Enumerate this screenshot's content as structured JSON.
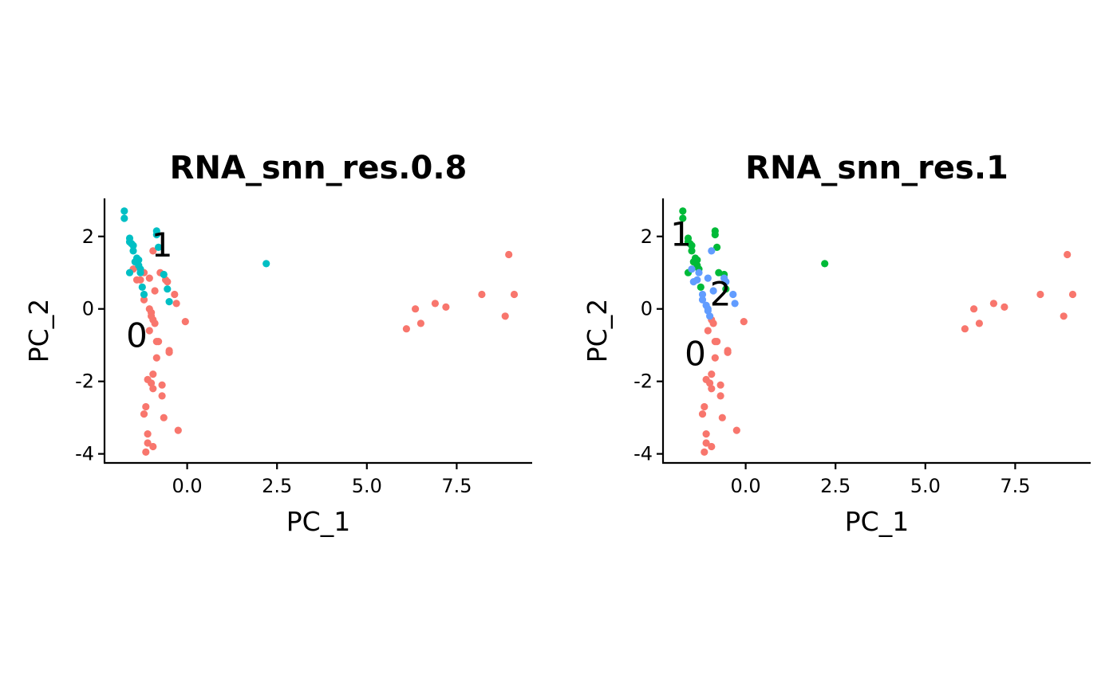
{
  "colors": {
    "cluster_0": "#F8766D",
    "cluster_1_res08": "#00BFC4",
    "cluster_1_res1": "#00BA38",
    "cluster_2_res1": "#619CFF"
  },
  "chart_data": [
    {
      "type": "scatter",
      "title": "RNA_snn_res.0.8",
      "xlabel": "PC_1",
      "ylabel": "PC_2",
      "xlim": [
        -2.3,
        9.6
      ],
      "ylim": [
        -4.25,
        3.05
      ],
      "xticks": [
        {
          "v": 0,
          "label": "0.0"
        },
        {
          "v": 2.5,
          "label": "2.5"
        },
        {
          "v": 5,
          "label": "5.0"
        },
        {
          "v": 7.5,
          "label": "7.5"
        }
      ],
      "yticks": [
        {
          "v": -4,
          "label": "-4"
        },
        {
          "v": -2,
          "label": "-2"
        },
        {
          "v": 0,
          "label": "0"
        },
        {
          "v": 2,
          "label": "2"
        }
      ],
      "grid": false,
      "cluster_labels": [
        {
          "text": "0",
          "x": -1.4,
          "y": -0.8
        },
        {
          "text": "1",
          "x": -0.7,
          "y": 1.7
        }
      ],
      "series": [
        {
          "cluster": "0",
          "color": "#F8766D",
          "points": [
            [
              -1.5,
              1.1
            ],
            [
              -1.4,
              0.8
            ],
            [
              -1.3,
              0.8
            ],
            [
              -1.2,
              0.25
            ],
            [
              -1.2,
              1.0
            ],
            [
              -1.05,
              0.85
            ],
            [
              -1.05,
              0.0
            ],
            [
              -1.0,
              -0.1
            ],
            [
              -1.0,
              -0.2
            ],
            [
              -0.95,
              -0.3
            ],
            [
              -0.95,
              1.6
            ],
            [
              -0.9,
              -0.4
            ],
            [
              -0.9,
              0.5
            ],
            [
              -0.85,
              -0.9
            ],
            [
              -0.8,
              -0.9
            ],
            [
              -0.75,
              1.0
            ],
            [
              -0.6,
              0.8
            ],
            [
              -0.55,
              0.75
            ],
            [
              -0.5,
              -1.15
            ],
            [
              -0.5,
              -1.2
            ],
            [
              -0.35,
              0.4
            ],
            [
              -0.3,
              0.15
            ],
            [
              -0.05,
              -0.35
            ],
            [
              -1.05,
              -0.6
            ],
            [
              -0.85,
              -1.35
            ],
            [
              -0.95,
              -1.8
            ],
            [
              -1.1,
              -1.95
            ],
            [
              -1.0,
              -2.05
            ],
            [
              -0.95,
              -2.2
            ],
            [
              -0.7,
              -2.1
            ],
            [
              -0.7,
              -2.4
            ],
            [
              -1.15,
              -2.7
            ],
            [
              -1.2,
              -2.9
            ],
            [
              -0.65,
              -3.0
            ],
            [
              -0.25,
              -3.35
            ],
            [
              -1.1,
              -3.45
            ],
            [
              -1.1,
              -3.7
            ],
            [
              -0.95,
              -3.8
            ],
            [
              -1.15,
              -3.95
            ],
            [
              6.1,
              -0.55
            ],
            [
              6.35,
              0.0
            ],
            [
              6.5,
              -0.4
            ],
            [
              6.9,
              0.15
            ],
            [
              7.2,
              0.05
            ],
            [
              8.2,
              0.4
            ],
            [
              8.85,
              -0.2
            ],
            [
              8.95,
              1.5
            ],
            [
              9.1,
              0.4
            ]
          ]
        },
        {
          "cluster": "1",
          "color": "#00BFC4",
          "points": [
            [
              -1.75,
              2.7
            ],
            [
              -1.75,
              2.5
            ],
            [
              -1.6,
              1.95
            ],
            [
              -1.6,
              1.85
            ],
            [
              -1.55,
              1.8
            ],
            [
              -1.5,
              1.75
            ],
            [
              -1.5,
              1.6
            ],
            [
              -1.45,
              1.3
            ],
            [
              -1.4,
              1.4
            ],
            [
              -1.35,
              1.35
            ],
            [
              -1.35,
              1.2
            ],
            [
              -1.3,
              1.1
            ],
            [
              -1.3,
              1.0
            ],
            [
              -1.25,
              0.6
            ],
            [
              -1.2,
              0.4
            ],
            [
              -1.6,
              1.0
            ],
            [
              -0.85,
              2.15
            ],
            [
              -0.85,
              2.05
            ],
            [
              -0.8,
              1.7
            ],
            [
              -0.65,
              0.95
            ],
            [
              -0.55,
              0.55
            ],
            [
              -0.5,
              0.2
            ],
            [
              2.2,
              1.25
            ]
          ]
        }
      ]
    },
    {
      "type": "scatter",
      "title": "RNA_snn_res.1",
      "xlabel": "PC_1",
      "ylabel": "PC_2",
      "xlim": [
        -2.3,
        9.6
      ],
      "ylim": [
        -4.25,
        3.05
      ],
      "xticks": [
        {
          "v": 0,
          "label": "0.0"
        },
        {
          "v": 2.5,
          "label": "2.5"
        },
        {
          "v": 5,
          "label": "5.0"
        },
        {
          "v": 7.5,
          "label": "7.5"
        }
      ],
      "yticks": [
        {
          "v": -4,
          "label": "-4"
        },
        {
          "v": -2,
          "label": "-2"
        },
        {
          "v": 0,
          "label": "0"
        },
        {
          "v": 2,
          "label": "2"
        }
      ],
      "grid": false,
      "cluster_labels": [
        {
          "text": "0",
          "x": -1.4,
          "y": -1.3
        },
        {
          "text": "1",
          "x": -1.8,
          "y": 2.0
        },
        {
          "text": "2",
          "x": -0.7,
          "y": 0.35
        }
      ],
      "series": [
        {
          "cluster": "0",
          "color": "#F8766D",
          "points": [
            [
              -1.05,
              -0.6
            ],
            [
              -0.95,
              -0.3
            ],
            [
              -0.9,
              -0.4
            ],
            [
              -0.85,
              -0.9
            ],
            [
              -0.8,
              -0.9
            ],
            [
              -0.5,
              -1.15
            ],
            [
              -0.5,
              -1.2
            ],
            [
              -0.05,
              -0.35
            ],
            [
              -0.85,
              -1.35
            ],
            [
              -0.95,
              -1.8
            ],
            [
              -1.1,
              -1.95
            ],
            [
              -1.0,
              -2.05
            ],
            [
              -0.95,
              -2.2
            ],
            [
              -0.7,
              -2.1
            ],
            [
              -0.7,
              -2.4
            ],
            [
              -1.15,
              -2.7
            ],
            [
              -1.2,
              -2.9
            ],
            [
              -0.65,
              -3.0
            ],
            [
              -0.25,
              -3.35
            ],
            [
              -1.1,
              -3.45
            ],
            [
              -1.1,
              -3.7
            ],
            [
              -0.95,
              -3.8
            ],
            [
              -1.15,
              -3.95
            ],
            [
              6.1,
              -0.55
            ],
            [
              6.35,
              0.0
            ],
            [
              6.5,
              -0.4
            ],
            [
              6.9,
              0.15
            ],
            [
              7.2,
              0.05
            ],
            [
              8.2,
              0.4
            ],
            [
              8.85,
              -0.2
            ],
            [
              8.95,
              1.5
            ],
            [
              9.1,
              0.4
            ]
          ]
        },
        {
          "cluster": "1",
          "color": "#00BA38",
          "points": [
            [
              -1.75,
              2.7
            ],
            [
              -1.75,
              2.5
            ],
            [
              -1.6,
              1.95
            ],
            [
              -1.6,
              1.85
            ],
            [
              -1.55,
              1.8
            ],
            [
              -1.5,
              1.75
            ],
            [
              -1.5,
              1.6
            ],
            [
              -1.45,
              1.3
            ],
            [
              -1.4,
              1.4
            ],
            [
              -1.35,
              1.35
            ],
            [
              -1.35,
              1.2
            ],
            [
              -1.3,
              1.1
            ],
            [
              -1.25,
              0.6
            ],
            [
              -1.6,
              1.0
            ],
            [
              -0.85,
              2.15
            ],
            [
              -0.85,
              2.05
            ],
            [
              -0.8,
              1.7
            ],
            [
              -0.75,
              1.0
            ],
            [
              -0.6,
              0.95
            ],
            [
              -0.55,
              0.55
            ],
            [
              2.2,
              1.25
            ]
          ]
        },
        {
          "cluster": "2",
          "color": "#619CFF",
          "points": [
            [
              -1.5,
              1.1
            ],
            [
              -1.45,
              0.75
            ],
            [
              -1.35,
              0.8
            ],
            [
              -1.3,
              1.0
            ],
            [
              -1.2,
              0.4
            ],
            [
              -1.2,
              0.25
            ],
            [
              -1.1,
              0.1
            ],
            [
              -1.05,
              0.0
            ],
            [
              -1.05,
              -0.05
            ],
            [
              -1.0,
              -0.2
            ],
            [
              -1.05,
              0.85
            ],
            [
              -0.95,
              1.6
            ],
            [
              -0.9,
              0.5
            ],
            [
              -0.6,
              0.85
            ],
            [
              -0.55,
              0.75
            ],
            [
              -0.35,
              0.4
            ],
            [
              -0.3,
              0.15
            ]
          ]
        }
      ]
    }
  ]
}
